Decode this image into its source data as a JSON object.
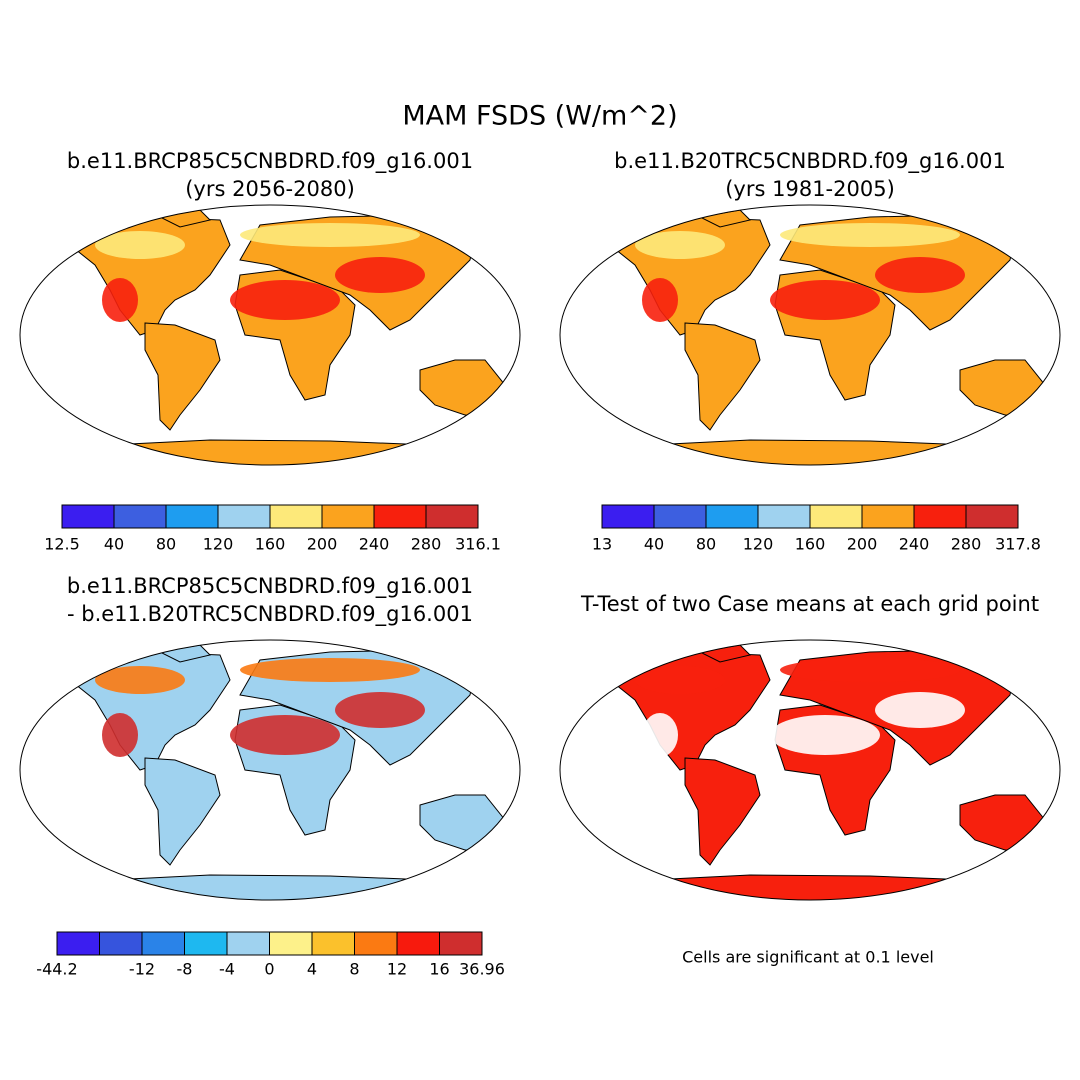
{
  "title": "MAM FSDS (W/m^2)",
  "panels": [
    {
      "title_lines": [
        "b.e11.BRCP85C5CNBDRD.f09_g16.001",
        "(yrs 2056-2080)"
      ],
      "colorbar": {
        "colors": [
          "#3b1ef0",
          "#3d5fe0",
          "#1e9df0",
          "#9fd2ef",
          "#fde97a",
          "#fba31e",
          "#f7200d",
          "#cf2e2e"
        ],
        "labels": [
          12.5,
          40,
          80,
          120,
          160,
          200,
          240,
          280,
          316.1
        ]
      }
    },
    {
      "title_lines": [
        "b.e11.B20TRC5CNBDRD.f09_g16.001",
        "(yrs 1981-2005)"
      ],
      "colorbar": {
        "colors": [
          "#3b1ef0",
          "#3d5fe0",
          "#1e9df0",
          "#9fd2ef",
          "#fde97a",
          "#fba31e",
          "#f7200d",
          "#cf2e2e"
        ],
        "labels": [
          13,
          40,
          80,
          120,
          160,
          200,
          240,
          280,
          317.8
        ]
      }
    },
    {
      "title_lines": [
        "b.e11.BRCP85C5CNBDRD.f09_g16.001",
        "- b.e11.B20TRC5CNBDRD.f09_g16.001"
      ],
      "colorbar": {
        "colors": [
          "#3b1ef0",
          "#3654dd",
          "#2a83e8",
          "#1eb8f0",
          "#9fd2ef",
          "#fdf18a",
          "#fbc12c",
          "#fb7a12",
          "#f71a0d",
          "#cf2e2e"
        ],
        "labels": [
          -44.2,
          null,
          -12,
          -8,
          -4,
          0,
          4,
          8,
          12,
          16,
          36.96
        ]
      }
    },
    {
      "title_lines": [
        "T-Test of two Case means at each grid point"
      ],
      "note": "Cells are significant at 0.1 level"
    }
  ]
}
